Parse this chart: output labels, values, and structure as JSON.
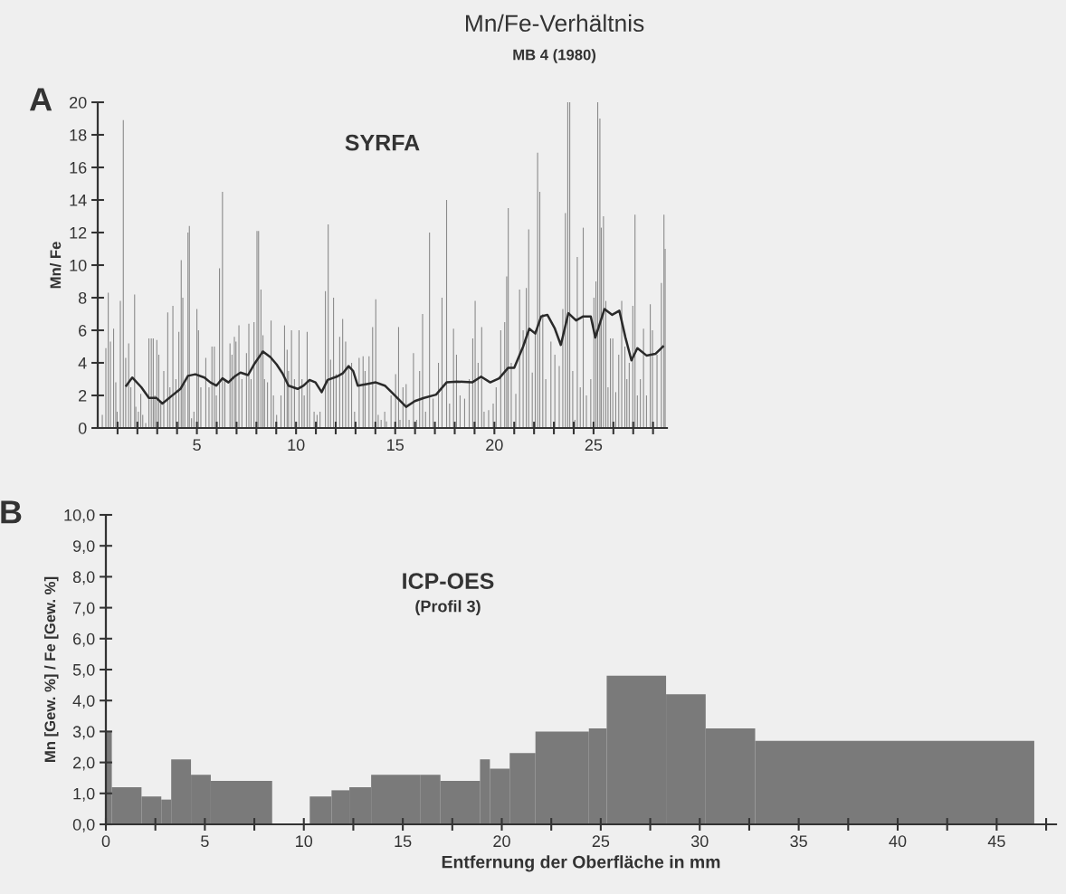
{
  "chart_data": [
    {
      "type": "bar",
      "title": "Mn/Fe-Verhältnis",
      "subtitle": "MB 4 (1980)",
      "ylabel": "Mn/ Fe",
      "annotations": [
        "A",
        "SYRFA"
      ],
      "xlim": [
        0,
        28.7
      ],
      "ylim": [
        0,
        20
      ],
      "xticks": [
        {
          "value": 1,
          "label": null
        },
        {
          "value": 2,
          "label": null
        },
        {
          "value": 3,
          "label": null
        },
        {
          "value": 4,
          "label": null
        },
        5,
        {
          "value": 6,
          "label": null
        },
        {
          "value": 7,
          "label": null
        },
        {
          "value": 8,
          "label": null
        },
        {
          "value": 9,
          "label": null
        },
        10,
        {
          "value": 11,
          "label": null
        },
        {
          "value": 12,
          "label": null
        },
        {
          "value": 13,
          "label": null
        },
        {
          "value": 14,
          "label": null
        },
        15,
        {
          "value": 16,
          "label": null
        },
        {
          "value": 17,
          "label": null
        },
        {
          "value": 18,
          "label": null
        },
        {
          "value": 19,
          "label": null
        },
        20,
        {
          "value": 21,
          "label": null
        },
        {
          "value": 22,
          "label": null
        },
        {
          "value": 23,
          "label": null
        },
        {
          "value": 24,
          "label": null
        },
        25,
        {
          "value": 26,
          "label": null
        },
        {
          "value": 27,
          "label": null
        },
        {
          "value": 28,
          "label": null
        }
      ],
      "yticks": [
        0,
        2,
        4,
        6,
        8,
        10,
        12,
        14,
        16,
        18,
        20
      ],
      "series": [
        {
          "type": "bar",
          "color": "#8a8a8a",
          "x": [
            0.23,
            0.41,
            0.53,
            0.64,
            0.8,
            0.91,
            0.98,
            1.14,
            1.29,
            1.41,
            1.56,
            1.67,
            1.86,
            1.92,
            2.05,
            2.17,
            2.27,
            2.42,
            2.58,
            2.7,
            2.8,
            2.88,
            2.98,
            3.08,
            3.18,
            3.33,
            3.53,
            3.64,
            3.79,
            3.94,
            4.09,
            4.21,
            4.29,
            4.39,
            4.55,
            4.62,
            4.73,
            4.85,
            5.0,
            5.08,
            5.2,
            5.45,
            5.61,
            5.76,
            5.88,
            5.98,
            6.14,
            6.29,
            6.41,
            6.67,
            6.77,
            6.89,
            6.97,
            7.12,
            7.27,
            7.5,
            7.62,
            7.73,
            7.88,
            8.03,
            8.11,
            8.23,
            8.33,
            8.41,
            8.56,
            8.74,
            8.86,
            9.02,
            9.24,
            9.42,
            9.55,
            9.62,
            9.77,
            9.92,
            10.15,
            10.3,
            10.41,
            10.56,
            10.68,
            10.91,
            11.06,
            11.21,
            11.48,
            11.62,
            11.74,
            11.89,
            12.02,
            12.2,
            12.35,
            12.5,
            12.65,
            12.8,
            12.95,
            13.18,
            13.38,
            13.48,
            13.68,
            13.86,
            14.02,
            14.14,
            14.29,
            14.47,
            14.56,
            14.79,
            15.02,
            15.17,
            15.24,
            15.39,
            15.55,
            15.7,
            15.92,
            16.08,
            16.23,
            16.38,
            16.53,
            16.73,
            16.91,
            17.18,
            17.36,
            17.59,
            17.74,
            17.94,
            18.09,
            18.27,
            18.5,
            18.73,
            18.91,
            19.03,
            19.18,
            19.36,
            19.48,
            19.71,
            19.94,
            20.09,
            20.32,
            20.52,
            20.62,
            20.7,
            20.85,
            21.08,
            21.27,
            21.45,
            21.61,
            21.73,
            21.91,
            22.06,
            22.18,
            22.29,
            22.44,
            22.59,
            22.85,
            23.05,
            23.27,
            23.45,
            23.58,
            23.7,
            23.8,
            23.95,
            24.06,
            24.18,
            24.33,
            24.48,
            24.64,
            24.86,
            25.02,
            25.12,
            25.21,
            25.32,
            25.39,
            25.5,
            25.62,
            25.73,
            25.85,
            25.97,
            26.12,
            26.27,
            26.42,
            26.58,
            26.68,
            26.8,
            26.98,
            27.09,
            27.21,
            27.36,
            27.52,
            27.67,
            27.86,
            27.97,
            28.2,
            28.42,
            28.55,
            28.61
          ],
          "values": [
            0.8,
            4.9,
            8.3,
            5.3,
            6.1,
            2.8,
            1.0,
            7.8,
            18.9,
            4.3,
            5.2,
            2.5,
            8.2,
            1.3,
            1.0,
            2.1,
            0.8,
            0.3,
            5.5,
            5.5,
            5.5,
            2.0,
            5.4,
            4.5,
            1.5,
            3.5,
            7.1,
            2.5,
            7.5,
            3.0,
            5.9,
            10.3,
            8.0,
            2.7,
            12.0,
            12.4,
            0.6,
            1.0,
            7.3,
            6.0,
            2.5,
            4.3,
            2.5,
            5.0,
            5.0,
            2.0,
            9.8,
            14.5,
            3.0,
            5.2,
            4.5,
            5.6,
            5.3,
            6.3,
            3.0,
            4.6,
            6.4,
            3.0,
            6.5,
            12.1,
            12.1,
            8.5,
            5.7,
            3.0,
            2.8,
            6.6,
            2.0,
            0.8,
            2.0,
            6.3,
            4.8,
            3.5,
            6.0,
            3.0,
            6.0,
            3.0,
            2.0,
            5.9,
            3.0,
            1.0,
            0.8,
            1.0,
            8.4,
            12.5,
            4.2,
            8.0,
            3.3,
            5.6,
            6.7,
            5.3,
            3.8,
            4.0,
            1.0,
            4.3,
            4.4,
            3.5,
            4.4,
            6.2,
            7.9,
            0.8,
            0.5,
            1.0,
            0.4,
            2.0,
            3.3,
            6.2,
            0.5,
            2.5,
            2.7,
            0.5,
            4.6,
            0.5,
            3.5,
            7.0,
            1.0,
            12.0,
            1.8,
            4.0,
            8.0,
            14.0,
            1.5,
            6.1,
            4.5,
            2.0,
            1.8,
            3.0,
            5.5,
            7.8,
            4.0,
            6.2,
            1.0,
            1.1,
            1.5,
            2.5,
            6.0,
            6.5,
            9.3,
            13.5,
            4.0,
            2.1,
            8.5,
            6.0,
            8.6,
            12.2,
            3.4,
            6.0,
            16.9,
            14.5,
            7.0,
            3.0,
            5.3,
            4.5,
            3.8,
            7.3,
            13.2,
            20.0,
            20.0,
            3.5,
            0.5,
            10.5,
            2.5,
            12.3,
            2.0,
            3.0,
            8.0,
            9.0,
            20.0,
            19.0,
            12.3,
            13.0,
            7.8,
            2.5,
            5.5,
            5.5,
            2.2,
            4.5,
            7.8,
            5.0,
            3.0,
            4.0,
            7.5,
            13.1,
            2.0,
            3.0,
            6.1,
            2.0,
            7.6,
            6.0,
            4.5,
            8.9,
            13.1,
            11.0
          ]
        },
        {
          "type": "line",
          "color": "#2a2a2a",
          "x": [
            1.44,
            1.74,
            2.2,
            2.58,
            2.95,
            3.26,
            3.71,
            4.17,
            4.55,
            4.92,
            5.38,
            5.68,
            5.98,
            6.29,
            6.59,
            6.89,
            7.2,
            7.58,
            7.88,
            8.33,
            8.71,
            9.02,
            9.32,
            9.62,
            10.08,
            10.38,
            10.68,
            10.98,
            11.29,
            11.59,
            12.05,
            12.35,
            12.65,
            12.88,
            13.11,
            13.56,
            14.02,
            14.48,
            14.94,
            15.55,
            15.99,
            16.45,
            17.06,
            17.59,
            18.12,
            18.88,
            19.33,
            19.79,
            20.24,
            20.7,
            21.0,
            21.45,
            21.76,
            22.06,
            22.36,
            22.67,
            23.05,
            23.35,
            23.73,
            24.12,
            24.48,
            24.86,
            25.09,
            25.55,
            25.94,
            26.3,
            26.61,
            26.91,
            27.21,
            27.67,
            28.12,
            28.5
          ],
          "values": [
            2.6,
            3.1,
            2.5,
            1.85,
            1.85,
            1.5,
            1.95,
            2.4,
            3.2,
            3.3,
            3.1,
            2.8,
            2.6,
            3.05,
            2.8,
            3.15,
            3.4,
            3.25,
            3.9,
            4.7,
            4.35,
            3.9,
            3.35,
            2.6,
            2.4,
            2.6,
            2.95,
            2.8,
            2.2,
            2.95,
            3.15,
            3.35,
            3.8,
            3.5,
            2.6,
            2.7,
            2.8,
            2.6,
            2.05,
            1.3,
            1.65,
            1.85,
            2.05,
            2.8,
            2.85,
            2.8,
            3.15,
            2.8,
            3.05,
            3.7,
            3.7,
            5.0,
            6.1,
            5.8,
            6.85,
            6.95,
            6.1,
            5.1,
            7.05,
            6.6,
            6.85,
            6.85,
            5.55,
            7.3,
            6.95,
            7.2,
            5.55,
            4.15,
            4.9,
            4.45,
            4.55,
            5.0
          ]
        }
      ]
    },
    {
      "type": "histogram",
      "xlabel": "Entfernung der Oberfläche in mm",
      "ylabel": "Mn [Gew. %] / Fe [Gew. %]",
      "annotations": [
        "B",
        "ICP-OES",
        "(Profil 3)"
      ],
      "color": "#7a7a7a",
      "bins": [
        0,
        0.3,
        1.8,
        2.8,
        3.3,
        4.3,
        5.3,
        8.4,
        10.3,
        11.4,
        12.3,
        13.4,
        15.9,
        16.9,
        18.9,
        19.4,
        20.4,
        21.7,
        24.4,
        25.3,
        28.3,
        30.3,
        32.8,
        46.9
      ],
      "values": [
        3.0,
        1.2,
        0.9,
        0.8,
        2.1,
        1.6,
        1.4,
        0,
        0.9,
        1.1,
        1.2,
        1.6,
        1.6,
        1.4,
        2.1,
        1.8,
        2.3,
        3.0,
        3.1,
        4.8,
        4.2,
        3.1,
        2.7
      ],
      "xlim": [
        0,
        48
      ],
      "ylim": [
        0,
        10
      ],
      "xticks": [
        0,
        {
          "value": 2.5,
          "label": null
        },
        5,
        {
          "value": 7.5,
          "label": null
        },
        10,
        {
          "value": 12.5,
          "label": null
        },
        15,
        {
          "value": 17.5,
          "label": null
        },
        20,
        {
          "value": 22.5,
          "label": null
        },
        25,
        {
          "value": 27.5,
          "label": null
        },
        30,
        {
          "value": 32.5,
          "label": null
        },
        35,
        {
          "value": 37.5,
          "label": null
        },
        40,
        {
          "value": 42.5,
          "label": null
        },
        45,
        {
          "value": 47.5,
          "label": null
        }
      ],
      "yticks": [
        {
          "value": 0,
          "label": "0,0"
        },
        {
          "value": 1,
          "label": "1,0"
        },
        {
          "value": 2,
          "label": "2,0"
        },
        {
          "value": 3,
          "label": "3,0"
        },
        {
          "value": 4,
          "label": "4,0"
        },
        {
          "value": 5,
          "label": "5,0"
        },
        {
          "value": 6,
          "label": "6,0"
        },
        {
          "value": 7,
          "label": "7,0"
        },
        {
          "value": 8,
          "label": "8,0"
        },
        {
          "value": 9,
          "label": "9,0"
        },
        {
          "value": 10,
          "label": "10,0"
        }
      ]
    }
  ]
}
